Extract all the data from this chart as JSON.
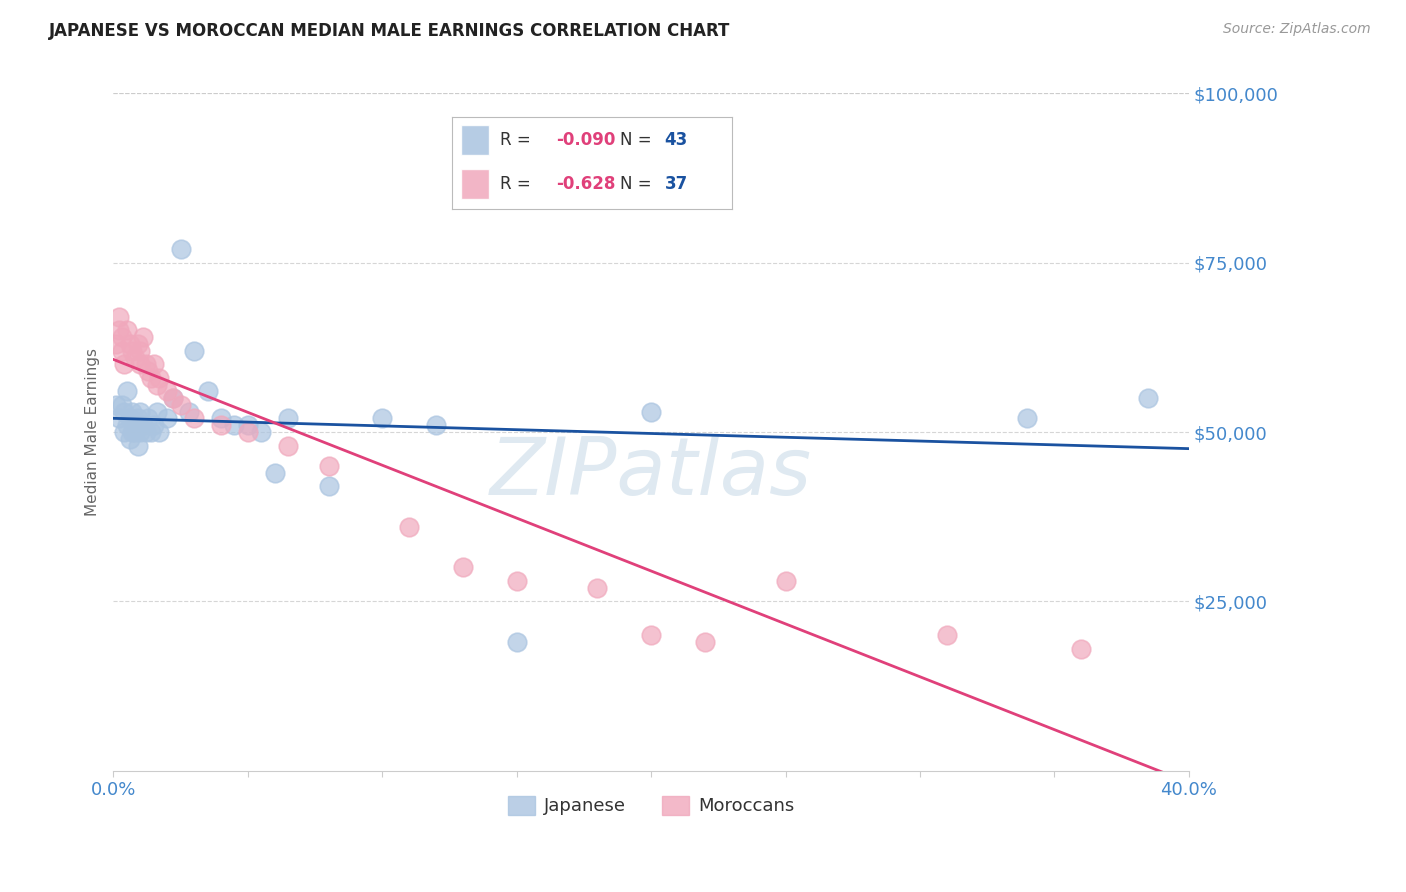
{
  "title": "JAPANESE VS MOROCCAN MEDIAN MALE EARNINGS CORRELATION CHART",
  "source": "Source: ZipAtlas.com",
  "ylabel": "Median Male Earnings",
  "xlim": [
    0.0,
    0.4
  ],
  "ylim": [
    0,
    100000
  ],
  "watermark": "ZIPatlas",
  "japanese_color": "#aac4e0",
  "moroccan_color": "#f0a8bc",
  "trendline_japanese_color": "#1a52a0",
  "trendline_moroccan_color": "#e0407a",
  "background_color": "#ffffff",
  "grid_color": "#cccccc",
  "axis_color": "#4488cc",
  "title_color": "#222222",
  "legend_r1": "R = ",
  "legend_v1": "-0.090",
  "legend_n1_label": "N = ",
  "legend_n1_val": "43",
  "legend_r2": "R = ",
  "legend_v2": "-0.628",
  "legend_n2_label": "N = ",
  "legend_n2_val": "37",
  "japanese_x": [
    0.001,
    0.002,
    0.003,
    0.004,
    0.004,
    0.005,
    0.005,
    0.006,
    0.006,
    0.007,
    0.007,
    0.008,
    0.008,
    0.009,
    0.009,
    0.01,
    0.01,
    0.011,
    0.012,
    0.013,
    0.014,
    0.015,
    0.016,
    0.017,
    0.02,
    0.022,
    0.025,
    0.028,
    0.03,
    0.035,
    0.04,
    0.045,
    0.05,
    0.055,
    0.06,
    0.065,
    0.08,
    0.1,
    0.12,
    0.15,
    0.2,
    0.34,
    0.385
  ],
  "japanese_y": [
    54000,
    52000,
    54000,
    50000,
    53000,
    51000,
    56000,
    49000,
    52000,
    50000,
    53000,
    51000,
    50000,
    48000,
    52000,
    50000,
    53000,
    51000,
    50000,
    52000,
    50000,
    51000,
    53000,
    50000,
    52000,
    55000,
    77000,
    53000,
    62000,
    56000,
    52000,
    51000,
    51000,
    50000,
    44000,
    52000,
    42000,
    52000,
    51000,
    19000,
    53000,
    52000,
    55000
  ],
  "moroccan_x": [
    0.001,
    0.002,
    0.002,
    0.003,
    0.003,
    0.004,
    0.005,
    0.006,
    0.007,
    0.008,
    0.009,
    0.01,
    0.01,
    0.011,
    0.012,
    0.013,
    0.014,
    0.015,
    0.016,
    0.017,
    0.02,
    0.022,
    0.025,
    0.03,
    0.04,
    0.05,
    0.065,
    0.08,
    0.11,
    0.13,
    0.15,
    0.18,
    0.2,
    0.22,
    0.25,
    0.31,
    0.36
  ],
  "moroccan_y": [
    63000,
    67000,
    65000,
    64000,
    62000,
    60000,
    65000,
    63000,
    62000,
    61000,
    63000,
    60000,
    62000,
    64000,
    60000,
    59000,
    58000,
    60000,
    57000,
    58000,
    56000,
    55000,
    54000,
    52000,
    51000,
    50000,
    48000,
    45000,
    36000,
    30000,
    28000,
    27000,
    20000,
    19000,
    28000,
    20000,
    18000
  ],
  "trendline_x_start": 0.0,
  "trendline_x_end": 0.4
}
